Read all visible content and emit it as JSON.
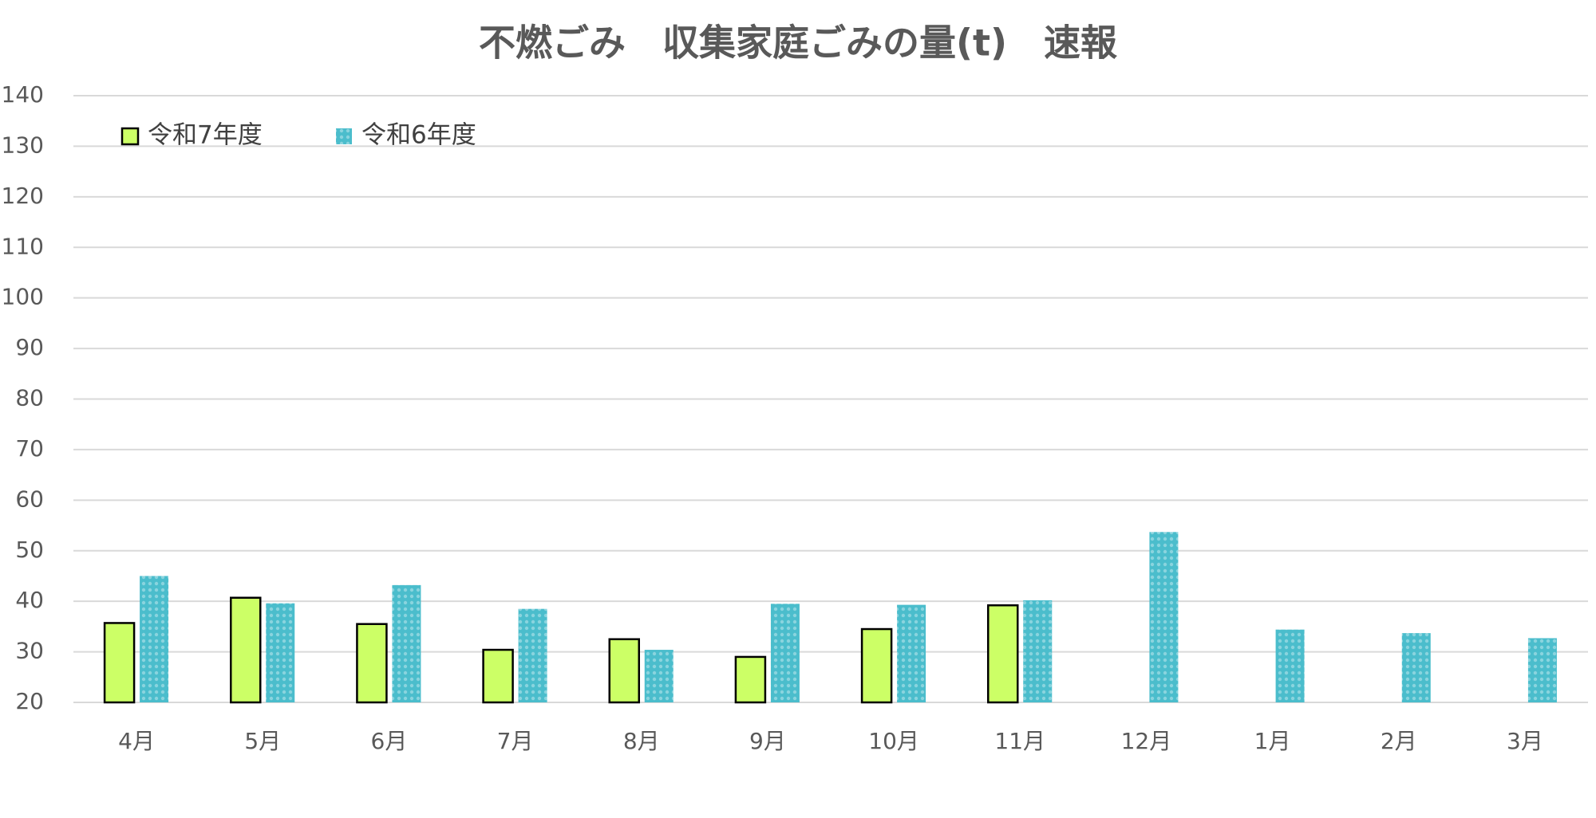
{
  "chart_data": {
    "type": "bar",
    "title": "不燃ごみ　収集家庭ごみの量(t)　速報",
    "categories": [
      "4月",
      "5月",
      "6月",
      "7月",
      "8月",
      "9月",
      "10月",
      "11月",
      "12月",
      "1月",
      "2月",
      "3月"
    ],
    "series": [
      {
        "name": "令和7年度",
        "color": "#ccff66",
        "values": [
          35.7,
          40.7,
          35.5,
          30.4,
          32.5,
          29.0,
          34.5,
          39.2,
          null,
          null,
          null,
          null
        ]
      },
      {
        "name": "令和6年度",
        "color": "#4bbdcc",
        "values": [
          45.0,
          39.6,
          43.2,
          38.5,
          30.4,
          39.5,
          39.3,
          40.2,
          53.7,
          34.4,
          33.7,
          32.7
        ]
      }
    ],
    "ylim": [
      20,
      140
    ],
    "yticks": [
      20,
      30,
      40,
      50,
      60,
      70,
      80,
      90,
      100,
      110,
      120,
      130,
      140
    ],
    "grid": true,
    "legend": "top-left"
  }
}
